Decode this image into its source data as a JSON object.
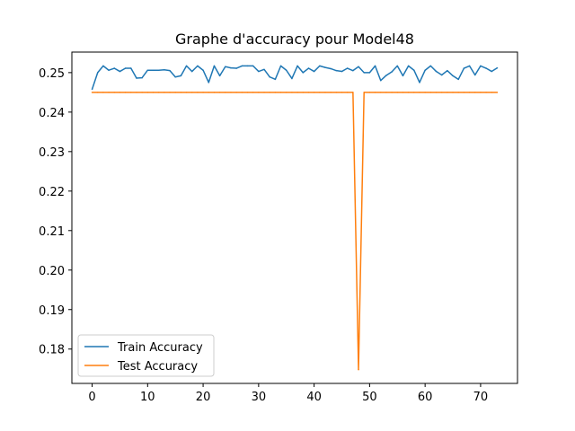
{
  "chart_data": {
    "type": "line",
    "title": "Graphe d'accuracy pour Model48",
    "xlabel": "",
    "ylabel": "",
    "xlim": [
      -3.65,
      76.65
    ],
    "ylim": [
      0.1713,
      0.2552
    ],
    "xticks": [
      0,
      10,
      20,
      30,
      40,
      50,
      60,
      70
    ],
    "yticks": [
      0.18,
      0.19,
      0.2,
      0.21,
      0.22,
      0.23,
      0.24,
      0.25
    ],
    "ytick_labels": [
      "0.18",
      "0.19",
      "0.20",
      "0.21",
      "0.22",
      "0.23",
      "0.24",
      "0.25"
    ],
    "grid": false,
    "legend_position": "lower-left",
    "series": [
      {
        "name": "Train Accuracy",
        "color": "#1f77b4",
        "values": [
          0.2458,
          0.25,
          0.2517,
          0.2506,
          0.2511,
          0.2503,
          0.2511,
          0.2511,
          0.2486,
          0.2487,
          0.2506,
          0.2506,
          0.2506,
          0.2507,
          0.2505,
          0.2489,
          0.2492,
          0.2517,
          0.2503,
          0.2517,
          0.2506,
          0.2475,
          0.2517,
          0.2492,
          0.2515,
          0.2512,
          0.2511,
          0.2517,
          0.2517,
          0.2517,
          0.2503,
          0.2508,
          0.2489,
          0.2483,
          0.2517,
          0.2506,
          0.2485,
          0.2517,
          0.25,
          0.2511,
          0.2503,
          0.2517,
          0.2513,
          0.251,
          0.2505,
          0.2503,
          0.2511,
          0.2505,
          0.2515,
          0.25,
          0.25,
          0.2517,
          0.248,
          0.2493,
          0.2502,
          0.2517,
          0.2492,
          0.2517,
          0.2506,
          0.2475,
          0.2506,
          0.2517,
          0.2503,
          0.2494,
          0.2505,
          0.2492,
          0.2483,
          0.2511,
          0.2517,
          0.2494,
          0.2517,
          0.2511,
          0.2503,
          0.2512
        ]
      },
      {
        "name": "Test Accuracy",
        "color": "#ff7f0e",
        "values": [
          0.245,
          0.245,
          0.245,
          0.245,
          0.245,
          0.245,
          0.245,
          0.245,
          0.245,
          0.245,
          0.245,
          0.245,
          0.245,
          0.245,
          0.245,
          0.245,
          0.245,
          0.245,
          0.245,
          0.245,
          0.245,
          0.245,
          0.245,
          0.245,
          0.245,
          0.245,
          0.245,
          0.245,
          0.245,
          0.245,
          0.245,
          0.245,
          0.245,
          0.245,
          0.245,
          0.245,
          0.245,
          0.245,
          0.245,
          0.245,
          0.245,
          0.245,
          0.245,
          0.245,
          0.245,
          0.245,
          0.245,
          0.245,
          0.1748,
          0.245,
          0.245,
          0.245,
          0.245,
          0.245,
          0.245,
          0.245,
          0.245,
          0.245,
          0.245,
          0.245,
          0.245,
          0.245,
          0.245,
          0.245,
          0.245,
          0.245,
          0.245,
          0.245,
          0.245,
          0.245,
          0.245,
          0.245,
          0.245,
          0.245
        ]
      }
    ]
  }
}
